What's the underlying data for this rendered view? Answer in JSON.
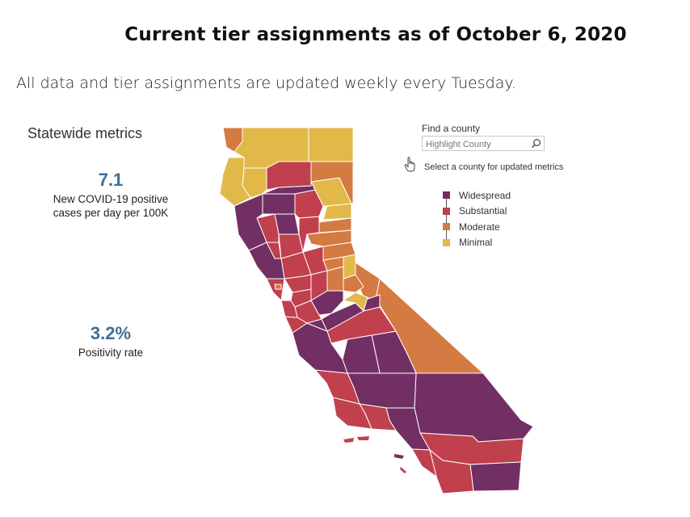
{
  "title": "Current tier assignments as of October 6, 2020",
  "subtitle": "All data and tier assignments are updated weekly every Tuesday.",
  "metrics": {
    "heading": "Statewide metrics",
    "cases": {
      "value": "7.1",
      "label_line1": "New COVID-19 positive",
      "label_line2": "cases per day per 100K"
    },
    "positivity": {
      "value": "3.2%",
      "label": "Positivity rate"
    }
  },
  "search": {
    "label": "Find a county",
    "placeholder": "Highlight County",
    "hint": "Select a county for updated metrics",
    "icon": "search-icon"
  },
  "legend": {
    "items": [
      {
        "label": "Widespread",
        "color": "#722f64"
      },
      {
        "label": "Substantial",
        "color": "#c0404e"
      },
      {
        "label": "Moderate",
        "color": "#d47a43"
      },
      {
        "label": "Minimal",
        "color": "#e2b948"
      }
    ]
  },
  "colors": {
    "widespread": "#722f64",
    "substantial": "#c0404e",
    "moderate": "#d47a43",
    "minimal": "#e2b948",
    "metric_value": "#3f6f96"
  }
}
